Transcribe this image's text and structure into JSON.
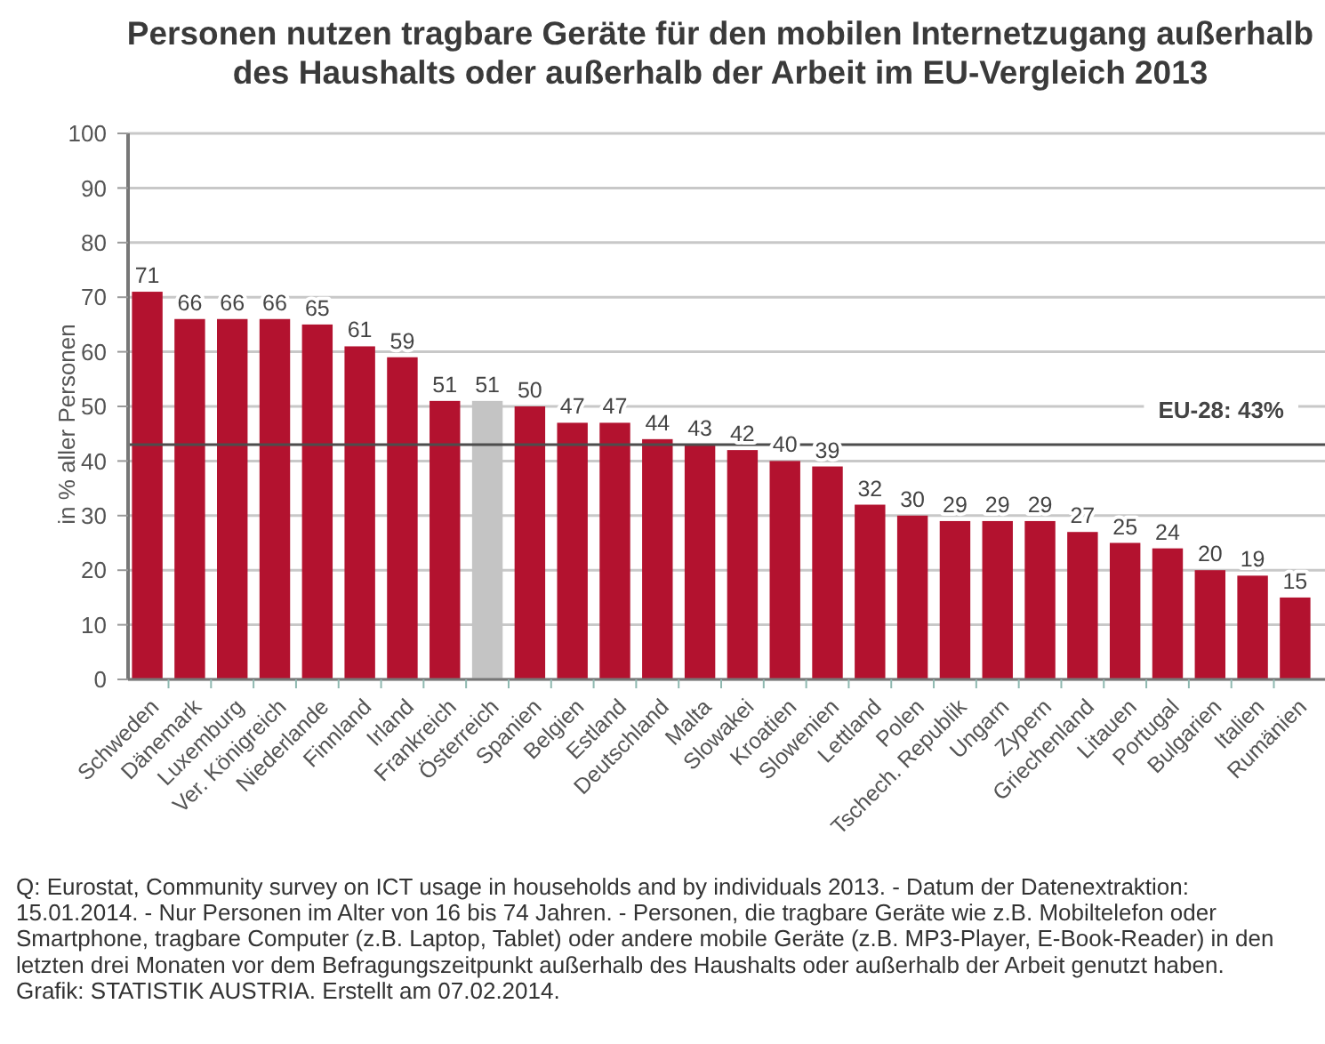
{
  "chart_data": {
    "type": "bar",
    "title": "Personen nutzen tragbare Geräte für den mobilen Internetzugang außerhalb des Haushalts oder außerhalb der Arbeit im EU-Vergleich 2013",
    "ylabel": "in % aller Personen",
    "categories": [
      "Schweden",
      "Dänemark",
      "Luxemburg",
      "Ver. Königreich",
      "Niederlande",
      "Finnland",
      "Irland",
      "Frankreich",
      "Österreich",
      "Spanien",
      "Belgien",
      "Estland",
      "Deutschland",
      "Malta",
      "Slowakei",
      "Kroatien",
      "Slowenien",
      "Lettland",
      "Polen",
      "Tschech. Republik",
      "Ungarn",
      "Zypern",
      "Griechenland",
      "Litauen",
      "Portugal",
      "Bulgarien",
      "Italien",
      "Rumänien"
    ],
    "values": [
      71,
      66,
      66,
      66,
      65,
      61,
      59,
      51,
      51,
      50,
      47,
      47,
      44,
      43,
      42,
      40,
      39,
      32,
      30,
      29,
      29,
      29,
      27,
      25,
      24,
      20,
      19,
      15
    ],
    "colors": [
      "#b3122f",
      "#b3122f",
      "#b3122f",
      "#b3122f",
      "#b3122f",
      "#b3122f",
      "#b3122f",
      "#b3122f",
      "#c4c4c4",
      "#b3122f",
      "#b3122f",
      "#b3122f",
      "#b3122f",
      "#b3122f",
      "#b3122f",
      "#b3122f",
      "#b3122f",
      "#b3122f",
      "#b3122f",
      "#b3122f",
      "#b3122f",
      "#b3122f",
      "#b3122f",
      "#b3122f",
      "#b3122f",
      "#b3122f",
      "#b3122f",
      "#b3122f"
    ],
    "ylim": [
      0,
      100
    ],
    "yticks": [
      0,
      10,
      20,
      30,
      40,
      50,
      60,
      70,
      80,
      90,
      100
    ],
    "grid": "y",
    "data_labels": true,
    "ref_lines": [
      {
        "axis": "y",
        "value": 43,
        "label": "EU-28: 43%",
        "color": "#4d4d4d"
      }
    ],
    "annotations": [
      "Q: Eurostat, Community survey on ICT usage in households and by individuals 2013. - Datum der Datenextraktion: 15.01.2014. - Nur Personen im Alter von 16 bis 74 Jahren. - Personen, die tragbare Geräte wie z.B. Mobiltelefon oder Smartphone, tragbare Computer (z.B. Laptop, Tablet) oder andere mobile Geräte (z.B. MP3-Player, E-Book-Reader) in den letzten drei Monaten vor dem Befragungszeitpunkt außerhalb des Haushalts oder außerhalb der Arbeit genutzt haben.",
      "Grafik: STATISTIK AUSTRIA. Erstellt am 07.02.2014."
    ]
  }
}
